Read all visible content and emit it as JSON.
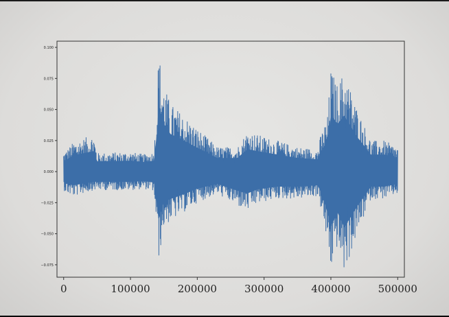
{
  "chart_data": {
    "type": "line",
    "title": "",
    "xlabel": "",
    "ylabel": "",
    "xlim": [
      -10000,
      510000
    ],
    "ylim": [
      -0.085,
      0.105
    ],
    "grid": false,
    "xticks": [
      0,
      100000,
      200000,
      300000,
      400000,
      500000
    ],
    "xtick_labels": [
      "0",
      "100000",
      "200000",
      "300000",
      "400000",
      "500000"
    ],
    "yticks": [
      0.1,
      0.075,
      0.05,
      0.025,
      0.0,
      -0.025,
      -0.05,
      -0.075
    ],
    "ytick_labels": [
      "0.100",
      "0.075",
      "0.050",
      "0.025",
      "0.000",
      "−0.025",
      "−0.050",
      "−0.075"
    ],
    "series": [
      {
        "color": "#3c6ea8",
        "x_range": [
          0,
          500000
        ],
        "envelope": {
          "x": [
            0,
            5000,
            15000,
            45000,
            50000,
            100000,
            120000,
            135000,
            140000,
            142000,
            150000,
            160000,
            175000,
            200000,
            230000,
            260000,
            275000,
            290000,
            320000,
            350000,
            380000,
            385000,
            395000,
            400000,
            410000,
            420000,
            440000,
            460000,
            480000,
            500000
          ],
          "upper": [
            0.016,
            0.018,
            0.024,
            0.03,
            0.015,
            0.016,
            0.014,
            0.016,
            0.06,
            0.098,
            0.07,
            0.055,
            0.048,
            0.035,
            0.02,
            0.02,
            0.033,
            0.03,
            0.025,
            0.02,
            0.018,
            0.03,
            0.045,
            0.083,
            0.07,
            0.082,
            0.05,
            0.025,
            0.025,
            0.02
          ],
          "lower": [
            -0.015,
            -0.018,
            -0.02,
            -0.015,
            -0.015,
            -0.015,
            -0.014,
            -0.016,
            -0.05,
            -0.072,
            -0.045,
            -0.04,
            -0.035,
            -0.025,
            -0.018,
            -0.028,
            -0.032,
            -0.026,
            -0.022,
            -0.022,
            -0.02,
            -0.03,
            -0.06,
            -0.08,
            -0.06,
            -0.082,
            -0.05,
            -0.022,
            -0.022,
            -0.018
          ]
        }
      }
    ]
  }
}
